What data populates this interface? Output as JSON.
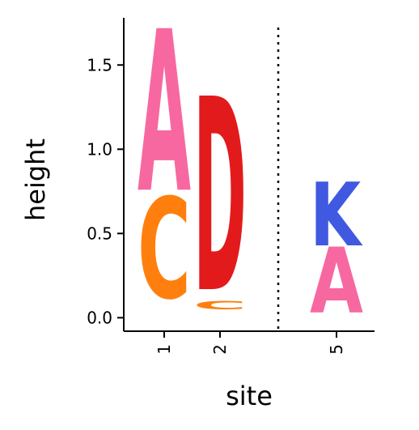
{
  "chart_data": {
    "type": "logo",
    "xlabel": "site",
    "ylabel": "height",
    "ylim": [
      -0.08,
      1.78
    ],
    "yticks": [
      0.0,
      0.5,
      1.0,
      1.5
    ],
    "ytick_labels": [
      "0.0",
      "0.5",
      "1.0",
      "1.5"
    ],
    "grid": false,
    "sites": [
      {
        "label": "1",
        "stack": [
          {
            "letter": "C",
            "y0": 0.12,
            "y1": 0.72,
            "color": "#ff7f0e"
          },
          {
            "letter": "A",
            "y0": 0.76,
            "y1": 1.72,
            "color": "#f768a1"
          }
        ]
      },
      {
        "label": "2",
        "stack": [
          {
            "letter": "C",
            "y0": 0.05,
            "y1": 0.1,
            "color": "#ff7f0e"
          },
          {
            "letter": "D",
            "y0": 0.17,
            "y1": 1.32,
            "color": "#e31a1c"
          }
        ]
      },
      {
        "label": "5",
        "stack": [
          {
            "letter": "A",
            "y0": 0.03,
            "y1": 0.42,
            "color": "#f768a1"
          },
          {
            "letter": "K",
            "y0": 0.43,
            "y1": 0.81,
            "color": "#4059e0"
          }
        ]
      }
    ],
    "separators": [
      {
        "between": [
          "2",
          "5"
        ],
        "style": "dotted"
      }
    ]
  }
}
